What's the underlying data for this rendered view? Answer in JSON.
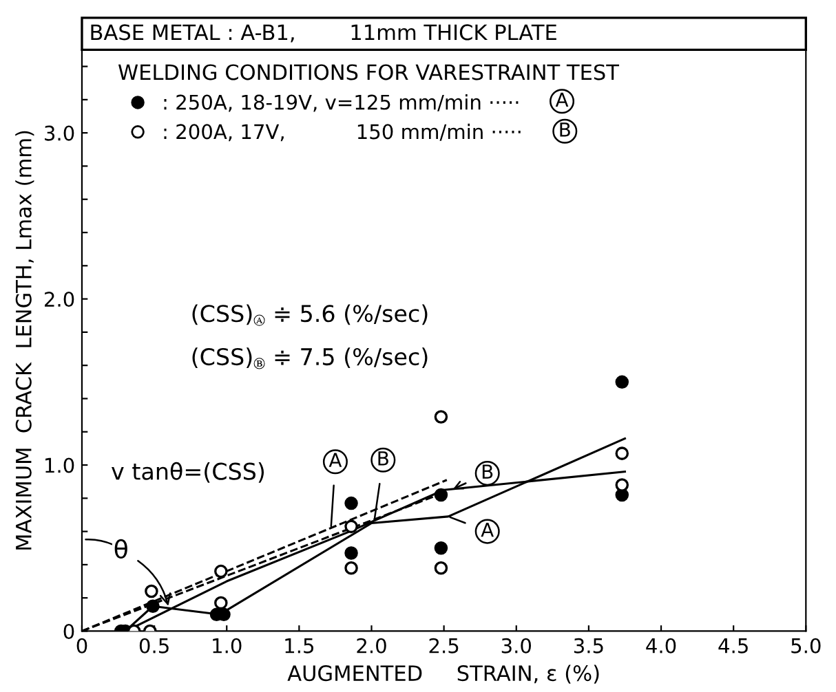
{
  "chart_data": {
    "type": "scatter",
    "title": "BASE METAL : A-B1,        11mm THICK PLATE",
    "xlabel": "AUGMENTED     STRAIN, ε (%)",
    "ylabel": "MAXIMUM  CRACK  LENGTH, Lmax (mm)",
    "legend_title": "WELDING CONDITIONS FOR VARESTRAINT TEST",
    "legend": "top left",
    "grid": false,
    "marker": "circle",
    "xlim": [
      0,
      5.0
    ],
    "ylim": [
      0,
      3.5
    ],
    "xticks": [
      0,
      {
        "value": 0.5,
        "label": "0.5"
      },
      {
        "value": 1,
        "label": "1.0"
      },
      {
        "value": 1.5,
        "label": "1.5"
      },
      {
        "value": 2,
        "label": "2.0"
      },
      {
        "value": 2.5,
        "label": "2.5"
      },
      {
        "value": 3,
        "label": "3.0"
      },
      {
        "value": 3.5,
        "label": "3.5"
      },
      {
        "value": 4,
        "label": "4.0"
      },
      {
        "value": 4.5,
        "label": "4.5"
      },
      {
        "value": 5,
        "label": "5.0"
      }
    ],
    "yticks": [
      0,
      {
        "value": 0.2,
        "label": null
      },
      {
        "value": 0.4,
        "label": null
      },
      {
        "value": 0.6,
        "label": null
      },
      {
        "value": 0.8,
        "label": null
      },
      {
        "value": 1,
        "label": "1.0"
      },
      {
        "value": 1.2,
        "label": null
      },
      {
        "value": 1.4,
        "label": null
      },
      {
        "value": 1.6,
        "label": null
      },
      {
        "value": 1.8,
        "label": null
      },
      {
        "value": 2,
        "label": "2.0"
      },
      {
        "value": 2.2,
        "label": null
      },
      {
        "value": 2.4,
        "label": null
      },
      {
        "value": 2.6,
        "label": null
      },
      {
        "value": 2.8,
        "label": null
      },
      {
        "value": 3,
        "label": "3.0"
      },
      {
        "value": 3.2,
        "label": null
      },
      {
        "value": 3.4,
        "label": null
      }
    ],
    "series": [
      {
        "name": ": 250A, 18-19V, v=125 mm/min ·····",
        "color": "#000000",
        "x": [
          0.27,
          0.3,
          0.49,
          0.93,
          0.98,
          1.86,
          1.86,
          2.48,
          2.48,
          3.73,
          3.73
        ],
        "values": [
          0,
          0,
          0.15,
          0.1,
          0.1,
          0.77,
          0.47,
          0.82,
          0.5,
          1.5,
          0.82
        ]
      },
      {
        "name": ": 200A, 17V,           150 mm/min ·····",
        "color": "#ffffff",
        "x": [
          0.36,
          0.47,
          0.48,
          0.96,
          0.96,
          1.86,
          1.86,
          2.48,
          2.48,
          3.73,
          3.73
        ],
        "values": [
          0,
          0,
          0.24,
          0.17,
          0.36,
          0.63,
          0.38,
          0.38,
          1.29,
          1.07,
          0.88
        ]
      },
      {
        "type": "line",
        "color": "#000000",
        "line_style": "solid",
        "marker": "none",
        "x": [
          0.3,
          0.49,
          0.95,
          2.0,
          2.53,
          3.75
        ],
        "values": [
          0,
          0.15,
          0.1,
          0.65,
          0.69,
          1.16
        ]
      },
      {
        "type": "line",
        "color": "#000000",
        "line_style": "solid",
        "marker": "none",
        "x": [
          0.35,
          1.0,
          1.85,
          2.5,
          3.75
        ],
        "values": [
          0.02,
          0.3,
          0.6,
          0.85,
          0.96
        ]
      },
      {
        "type": "line",
        "color": "#000000",
        "line_style": "dashed",
        "marker": "none",
        "x": [
          0,
          2.43
        ],
        "values": [
          0,
          0.81
        ]
      },
      {
        "type": "line",
        "color": "#000000",
        "line_style": "dashed",
        "marker": "none",
        "x": [
          0,
          2.52
        ],
        "values": [
          0,
          0.91
        ]
      }
    ],
    "annotations": [
      "A",
      "B",
      "(CSS)$_{Ⓐ}$ ≑ 5.6 (%/sec)",
      "(CSS)$_{Ⓑ}$ ≑ 7.5 (%/sec)",
      "v tanθ=(CSS)",
      {
        "text": "θ",
        "x": 0.6,
        "y": 0.14
      },
      {
        "text": "A",
        "x": 1.72,
        "y": 0.62
      },
      {
        "text": "B",
        "x": 2.02,
        "y": 0.67
      },
      {
        "text": "B",
        "x": 2.55,
        "y": 0.85
      },
      {
        "text": "A",
        "x": 2.53,
        "y": 0.69
      }
    ]
  }
}
